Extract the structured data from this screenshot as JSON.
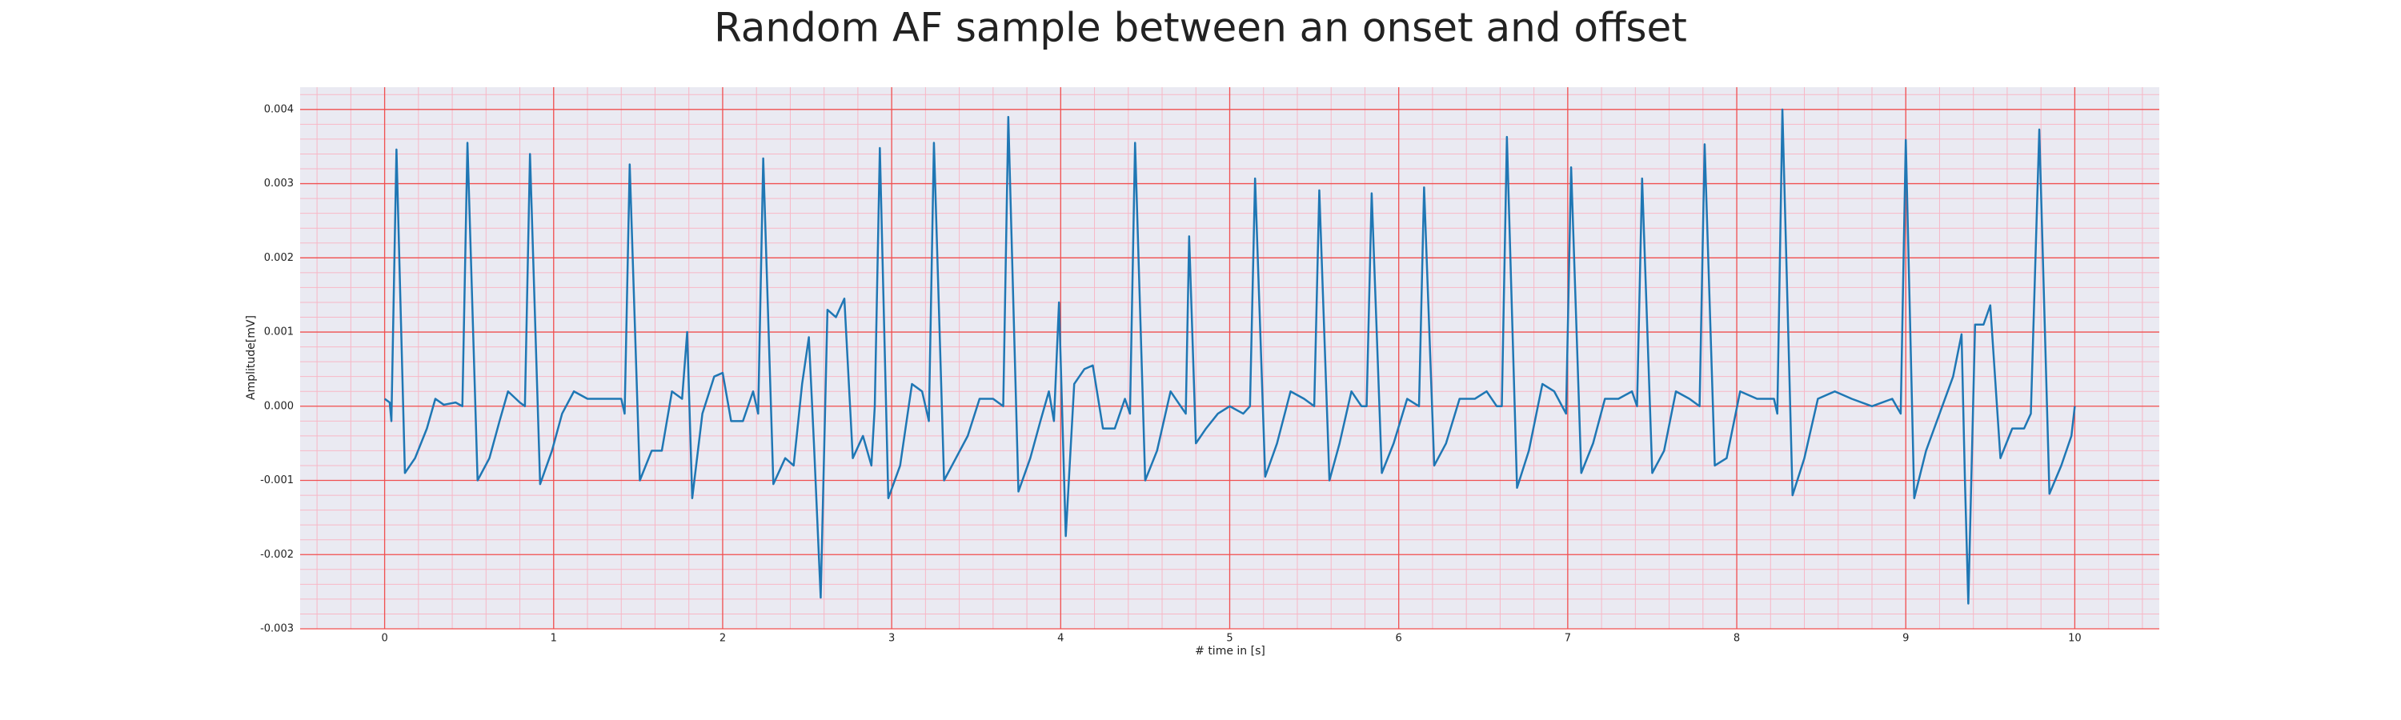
{
  "chart_data": {
    "type": "line",
    "title": "Random AF sample between an onset and offset",
    "xlabel": "# time in [s]",
    "ylabel": "Amplitude[mV]",
    "color": "#1f77b4",
    "x": [
      0.0,
      0.03,
      0.04,
      0.07,
      0.12,
      0.18,
      0.25,
      0.3,
      0.35,
      0.42,
      0.46,
      0.49,
      0.55,
      0.62,
      0.68,
      0.73,
      0.8,
      0.83,
      0.86,
      0.92,
      0.99,
      1.05,
      1.12,
      1.2,
      1.3,
      1.4,
      1.42,
      1.45,
      1.51,
      1.58,
      1.64,
      1.7,
      1.76,
      1.79,
      1.82,
      1.88,
      1.95,
      2.0,
      2.05,
      2.12,
      2.18,
      2.21,
      2.24,
      2.3,
      2.37,
      2.42,
      2.47,
      2.51,
      2.54,
      2.58,
      2.62,
      2.67,
      2.72,
      2.77,
      2.83,
      2.88,
      2.9,
      2.93,
      2.98,
      3.05,
      3.12,
      3.18,
      3.22,
      3.25,
      3.31,
      3.38,
      3.45,
      3.52,
      3.6,
      3.66,
      3.69,
      3.75,
      3.82,
      3.88,
      3.93,
      3.96,
      3.99,
      4.03,
      4.08,
      4.14,
      4.19,
      4.25,
      4.32,
      4.38,
      4.41,
      4.44,
      4.5,
      4.57,
      4.65,
      4.71,
      4.74,
      4.76,
      4.8,
      4.86,
      4.93,
      5.0,
      5.08,
      5.12,
      5.15,
      5.21,
      5.28,
      5.36,
      5.44,
      5.5,
      5.53,
      5.59,
      5.65,
      5.72,
      5.78,
      5.81,
      5.84,
      5.9,
      5.97,
      6.05,
      6.12,
      6.15,
      6.21,
      6.28,
      6.36,
      6.45,
      6.52,
      6.58,
      6.61,
      6.64,
      6.7,
      6.77,
      6.85,
      6.92,
      6.99,
      7.02,
      7.08,
      7.15,
      7.22,
      7.3,
      7.38,
      7.41,
      7.44,
      7.5,
      7.57,
      7.64,
      7.72,
      7.78,
      7.81,
      7.87,
      7.94,
      8.02,
      8.12,
      8.22,
      8.24,
      8.27,
      8.33,
      8.4,
      8.48,
      8.58,
      8.68,
      8.8,
      8.92,
      8.97,
      9.0,
      9.05,
      9.12,
      9.2,
      9.28,
      9.33,
      9.35,
      9.37,
      9.41,
      9.46,
      9.5,
      9.56,
      9.63,
      9.7,
      9.74,
      9.79,
      9.85,
      9.92,
      9.98,
      10.0
    ],
    "values": [
      0.0001,
      5e-05,
      -0.0002,
      0.00346,
      -0.0009,
      -0.0007,
      -0.0003,
      0.0001,
      2e-05,
      5e-05,
      0.0,
      0.00355,
      -0.001,
      -0.0007,
      -0.0002,
      0.0002,
      5e-05,
      0.0,
      0.0034,
      -0.00105,
      -0.0006,
      -0.0001,
      0.0002,
      0.0001,
      0.0001,
      0.0001,
      -0.0001,
      0.00326,
      -0.001,
      -0.0006,
      -0.0006,
      0.0002,
      0.0001,
      0.001,
      -0.00124,
      -0.0001,
      0.0004,
      0.00045,
      -0.0002,
      -0.0002,
      0.0002,
      -0.0001,
      0.00334,
      -0.00105,
      -0.0007,
      -0.0008,
      0.0003,
      0.00093,
      -0.0005,
      -0.00258,
      0.0013,
      0.0012,
      0.00145,
      -0.0007,
      -0.0004,
      -0.0008,
      0.0,
      0.00348,
      -0.00124,
      -0.0008,
      0.0003,
      0.0002,
      -0.0002,
      0.00355,
      -0.001,
      -0.0007,
      -0.0004,
      0.0001,
      0.0001,
      0.0,
      0.0039,
      -0.00115,
      -0.0007,
      -0.0002,
      0.0002,
      -0.0002,
      0.0014,
      -0.00175,
      0.0003,
      0.0005,
      0.00055,
      -0.0003,
      -0.0003,
      0.0001,
      -0.0001,
      0.00355,
      -0.001,
      -0.0006,
      0.0002,
      0.0,
      -0.0001,
      0.00229,
      -0.0005,
      -0.0003,
      -0.0001,
      0.0,
      -0.0001,
      0.0,
      0.00307,
      -0.00095,
      -0.0005,
      0.0002,
      0.0001,
      0.0,
      0.00291,
      -0.001,
      -0.0005,
      0.0002,
      0.0,
      0.0,
      0.00287,
      -0.0009,
      -0.0005,
      0.0001,
      0.0,
      0.00295,
      -0.0008,
      -0.0005,
      0.0001,
      0.0001,
      0.0002,
      0.0,
      0.0,
      0.00363,
      -0.0011,
      -0.0006,
      0.0003,
      0.0002,
      -0.0001,
      0.00322,
      -0.0009,
      -0.0005,
      0.0001,
      0.0001,
      0.0002,
      0.0,
      0.00307,
      -0.0009,
      -0.0006,
      0.0002,
      0.0001,
      0.0,
      0.00353,
      -0.0008,
      -0.0007,
      0.0002,
      0.0001,
      0.0001,
      -0.0001,
      0.004,
      -0.0012,
      -0.0007,
      0.0001,
      0.0002,
      0.0001,
      0.0,
      0.0001,
      -0.0001,
      0.00359,
      -0.00124,
      -0.0006,
      -0.0001,
      0.0004,
      0.00097,
      -0.001,
      -0.00266,
      0.0011,
      0.0011,
      0.00136,
      -0.0007,
      -0.0003,
      -0.0003,
      -0.0001,
      0.00373,
      -0.00118,
      -0.0008,
      -0.0004,
      0.0
    ],
    "xlim": [
      -0.5,
      10.5
    ],
    "ylim": [
      -0.003,
      0.0043
    ],
    "xticks": [
      0,
      1,
      2,
      3,
      4,
      5,
      6,
      7,
      8,
      9,
      10
    ],
    "yticks": [
      -0.003,
      -0.002,
      -0.001,
      {
        "value": 0,
        "label": "0.000"
      },
      0.001,
      0.002,
      0.003,
      0.004
    ],
    "grid": true,
    "minor_divisions": 5,
    "background": "#eaeaf2"
  }
}
